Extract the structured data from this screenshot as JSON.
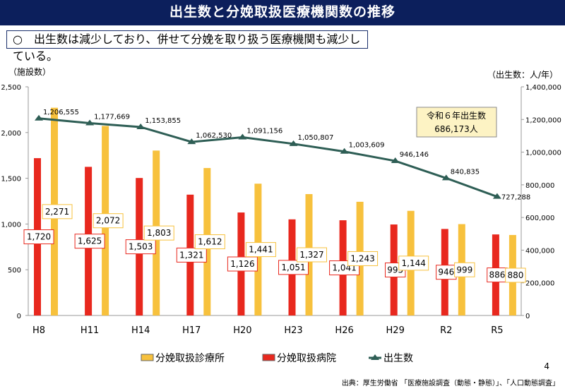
{
  "header": {
    "title": "出生数と分娩取扱医療機関数の推移",
    "summary": "○　出生数は減少しており、併せて分娩を取り扱う医療機関も減少している。"
  },
  "callout": {
    "line1": "令和６年出生数",
    "line2": "686,173人"
  },
  "page_number": "4",
  "source": "出典：厚生労働省 「医療施設調査（動態・静態）」、「人口動態調査」",
  "chart_data": {
    "type": "bar+line",
    "ylabel_left": "（施設数）",
    "ylabel_right": "（出生数：人/年）",
    "ylim_left": [
      0,
      2500
    ],
    "ylim_right": [
      0,
      1400000
    ],
    "yticks_left": [
      "0",
      "500",
      "1,000",
      "1,500",
      "2,000",
      "2,500"
    ],
    "yticks_right": [
      "0",
      "200,000",
      "400,000",
      "600,000",
      "800,000",
      "1,000,000",
      "1,200,000",
      "1,400,000"
    ],
    "categories": [
      "H8",
      "H11",
      "H14",
      "H17",
      "H20",
      "H23",
      "H26",
      "H29",
      "R2",
      "R5"
    ],
    "series": [
      {
        "name": "分娩取扱診療所",
        "type": "bar",
        "axis": "left",
        "color": "#f7c13d",
        "values": [
          2271,
          2072,
          1803,
          1612,
          1441,
          1327,
          1243,
          1144,
          999,
          880
        ],
        "labels": [
          "2,271",
          "2,072",
          "1,803",
          "1,612",
          "1,441",
          "1,327",
          "1,243",
          "1,144",
          "999",
          "880"
        ]
      },
      {
        "name": "分娩取扱病院",
        "type": "bar",
        "axis": "left",
        "color": "#e8281e",
        "values": [
          1720,
          1625,
          1503,
          1321,
          1126,
          1051,
          1041,
          995,
          946,
          886
        ],
        "labels": [
          "1,720",
          "1,625",
          "1,503",
          "1,321",
          "1,126",
          "1,051",
          "1,041",
          "995",
          "946",
          "886"
        ]
      },
      {
        "name": "出生数",
        "type": "line",
        "axis": "right",
        "color": "#2e5e55",
        "values": [
          1206555,
          1177669,
          1153855,
          1062530,
          1091156,
          1050807,
          1003609,
          946146,
          840835,
          727288
        ],
        "labels": [
          "1,206,555",
          "1,177,669",
          "1,153,855",
          "1,062,530",
          "1,091,156",
          "1,050,807",
          "1,003,609",
          "946,146",
          "840,835",
          "727,288"
        ]
      }
    ],
    "legend_position": "bottom",
    "grid": false
  }
}
